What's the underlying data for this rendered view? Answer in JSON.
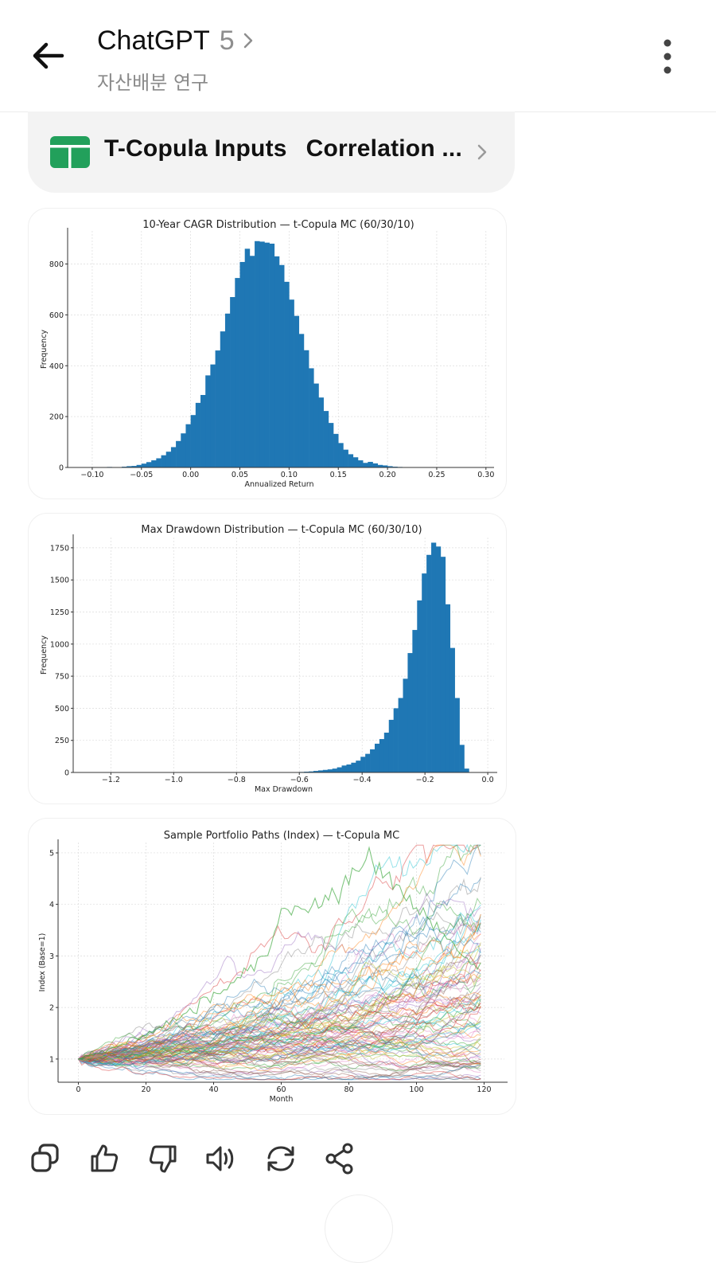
{
  "header": {
    "title": "ChatGPT",
    "version": "5",
    "subtitle": "자산배분 연구",
    "icons": {
      "back": "arrow-left-icon",
      "chevron": "chevron-right-icon",
      "more": "more-vertical-icon"
    }
  },
  "attachment": {
    "icon": "spreadsheet-icon",
    "icon_color": "#22a05b",
    "tab1": "T-Copula Inputs",
    "tab2": "Correlation ..."
  },
  "chart_data": [
    {
      "type": "bar",
      "title": "10-Year CAGR Distribution — t-Copula MC (60/30/10)",
      "xlabel": "Annualized Return",
      "ylabel": "Frequency",
      "color": "#1f77b4",
      "xlim": [
        -0.125,
        0.305
      ],
      "ylim": [
        0,
        930
      ],
      "xticks": [
        -0.1,
        -0.05,
        0.0,
        0.05,
        0.1,
        0.15,
        0.2,
        0.25,
        0.3
      ],
      "xtick_labels": [
        "−0.10",
        "−0.05",
        "0.00",
        "0.05",
        "0.10",
        "0.15",
        "0.20",
        "0.25",
        "0.30"
      ],
      "yticks": [
        0,
        200,
        400,
        600,
        800
      ],
      "grid": true,
      "bin_edges": [
        -0.085,
        -0.08,
        -0.075,
        -0.07,
        -0.065,
        -0.06,
        -0.055,
        -0.05,
        -0.045,
        -0.04,
        -0.035,
        -0.03,
        -0.025,
        -0.02,
        -0.015,
        -0.01,
        -0.005,
        0.0,
        0.005,
        0.01,
        0.015,
        0.02,
        0.025,
        0.03,
        0.035,
        0.04,
        0.045,
        0.05,
        0.055,
        0.06,
        0.065,
        0.07,
        0.075,
        0.08,
        0.085,
        0.09,
        0.095,
        0.1,
        0.105,
        0.11,
        0.115,
        0.12,
        0.125,
        0.13,
        0.135,
        0.14,
        0.145,
        0.15,
        0.155,
        0.16,
        0.165,
        0.17,
        0.175,
        0.18,
        0.185,
        0.19,
        0.195,
        0.2,
        0.205,
        0.21,
        0.215,
        0.22,
        0.225,
        0.23,
        0.235,
        0.24
      ],
      "values": [
        2,
        0,
        1,
        3,
        5,
        6,
        10,
        15,
        21,
        28,
        36,
        48,
        62,
        80,
        104,
        134,
        170,
        206,
        254,
        285,
        362,
        405,
        460,
        535,
        605,
        670,
        745,
        808,
        860,
        832,
        890,
        888,
        884,
        880,
        830,
        796,
        730,
        660,
        596,
        525,
        461,
        390,
        330,
        275,
        222,
        175,
        132,
        96,
        70,
        52,
        40,
        28,
        18,
        22,
        16,
        10,
        8,
        5,
        3,
        2,
        1,
        1,
        0,
        0,
        0
      ]
    },
    {
      "type": "bar",
      "title": "Max Drawdown Distribution — t-Copula MC (60/30/10)",
      "xlabel": "Max Drawdown",
      "ylabel": "Frequency",
      "color": "#1f77b4",
      "xlim": [
        -1.32,
        0.02
      ],
      "ylim": [
        0,
        1830
      ],
      "xticks": [
        -1.2,
        -1.0,
        -0.8,
        -0.6,
        -0.4,
        -0.2,
        0.0
      ],
      "xtick_labels": [
        "−1.2",
        "−1.0",
        "−0.8",
        "−0.6",
        "−0.4",
        "−0.2",
        "0.0"
      ],
      "yticks": [
        0,
        250,
        500,
        750,
        1000,
        1250,
        1500,
        1750
      ],
      "grid": true,
      "bin_edges": [
        -0.63,
        -0.615,
        -0.6,
        -0.585,
        -0.57,
        -0.555,
        -0.54,
        -0.525,
        -0.51,
        -0.495,
        -0.48,
        -0.465,
        -0.45,
        -0.435,
        -0.42,
        -0.405,
        -0.39,
        -0.375,
        -0.36,
        -0.345,
        -0.33,
        -0.315,
        -0.3,
        -0.285,
        -0.27,
        -0.255,
        -0.24,
        -0.225,
        -0.21,
        -0.195,
        -0.18,
        -0.165,
        -0.15,
        -0.135,
        -0.12,
        -0.105,
        -0.09,
        -0.075,
        -0.06
      ],
      "values": [
        2,
        3,
        4,
        6,
        8,
        12,
        16,
        20,
        24,
        30,
        40,
        54,
        62,
        76,
        92,
        122,
        145,
        180,
        224,
        260,
        310,
        410,
        500,
        580,
        730,
        930,
        1110,
        1340,
        1550,
        1695,
        1790,
        1760,
        1680,
        1310,
        970,
        580,
        215,
        30
      ]
    },
    {
      "type": "line",
      "title": "Sample Portfolio Paths (Index) — t-Copula MC",
      "xlabel": "Month",
      "ylabel": "Index (Base=1)",
      "xlim": [
        -6,
        126
      ],
      "ylim": [
        0.55,
        5.2
      ],
      "xticks": [
        0,
        20,
        40,
        60,
        80,
        100,
        120
      ],
      "yticks": [
        1,
        2,
        3,
        4,
        5
      ],
      "grid": true,
      "n_paths": 100,
      "months": 119,
      "start_value": 1.0,
      "end_value_range": [
        0.8,
        4.7
      ],
      "peak_value": 4.85,
      "peak_month": 86
    }
  ],
  "actions": {
    "copy": "copy-icon",
    "like": "thumbs-up-icon",
    "dislike": "thumbs-down-icon",
    "read_aloud": "speaker-icon",
    "regenerate": "refresh-icon",
    "share": "share-icon"
  }
}
